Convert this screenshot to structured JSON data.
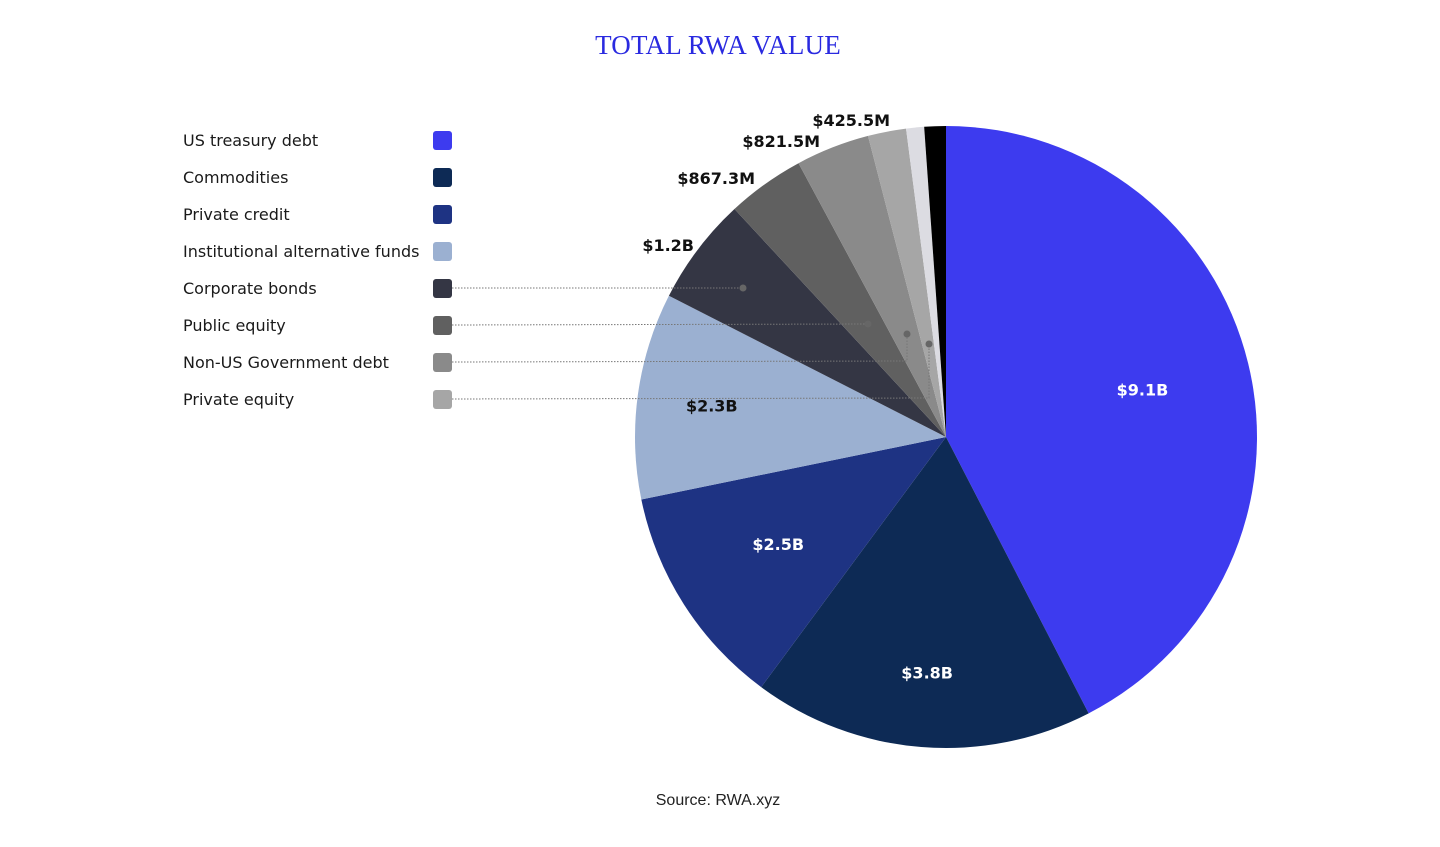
{
  "chart_data": {
    "type": "pie",
    "title": "TOTAL RWA VALUE",
    "source": "Source: RWA.xyz",
    "legend_position": "left",
    "start_angle": "top, clockwise",
    "slices": [
      {
        "name": "US treasury debt",
        "label": "$9.1B",
        "value": 9.1,
        "color": "#3d3bef"
      },
      {
        "name": "Commodities",
        "label": "$3.8B",
        "value": 3.8,
        "color": "#0d2a55"
      },
      {
        "name": "Private credit",
        "label": "$2.5B",
        "value": 2.5,
        "color": "#1e3383"
      },
      {
        "name": "Institutional alternative funds",
        "label": "$2.3B",
        "value": 2.3,
        "color": "#9bb0d1"
      },
      {
        "name": "Corporate bonds",
        "label": "$1.2B",
        "value": 1.2,
        "color": "#343644"
      },
      {
        "name": "Public equity",
        "label": "$867.3M",
        "value": 0.8673,
        "color": "#606060"
      },
      {
        "name": "Non-US Government debt",
        "label": "$821.5M",
        "value": 0.8215,
        "color": "#8a8a8a"
      },
      {
        "name": "Private equity",
        "label": "$425.5M",
        "value": 0.4255,
        "color": "#a6a6a6"
      },
      {
        "name": "",
        "label": "",
        "value": 0.2,
        "color": "#dcdce2"
      },
      {
        "name": "",
        "label": "",
        "value": 0.24,
        "color": "#000000"
      }
    ]
  }
}
